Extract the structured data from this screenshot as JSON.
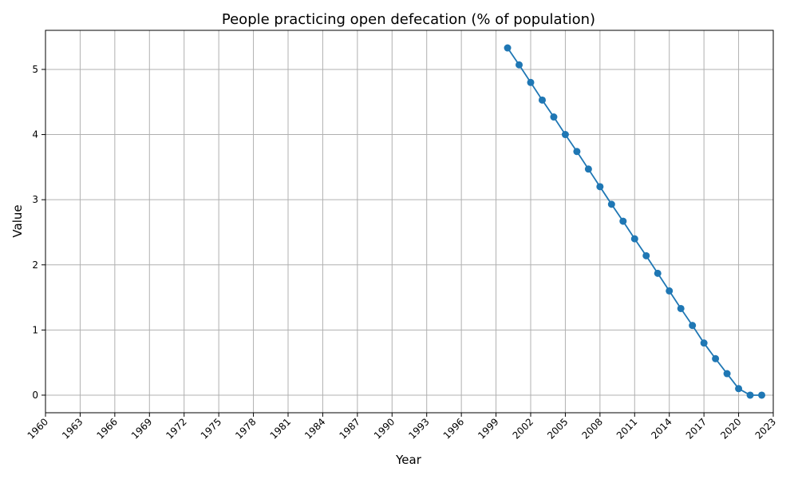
{
  "chart_data": {
    "type": "line",
    "title": "People practicing open defecation (% of population)",
    "xlabel": "Year",
    "ylabel": "Value",
    "xlim": [
      1960,
      2023
    ],
    "ylim": [
      -0.27,
      5.6
    ],
    "xticks": [
      1960,
      1963,
      1966,
      1969,
      1972,
      1975,
      1978,
      1981,
      1984,
      1987,
      1990,
      1993,
      1996,
      1999,
      2002,
      2005,
      2008,
      2011,
      2014,
      2017,
      2020,
      2023
    ],
    "yticks": [
      0,
      1,
      2,
      3,
      4,
      5
    ],
    "grid": true,
    "marker": "circle",
    "color": "#1f77b4",
    "series": [
      {
        "x": [
          2000,
          2001,
          2002,
          2003,
          2004,
          2005,
          2006,
          2007,
          2008,
          2009,
          2010,
          2011,
          2012,
          2013,
          2014,
          2015,
          2016,
          2017,
          2018,
          2019,
          2020,
          2021,
          2022
        ],
        "values": [
          5.33,
          5.07,
          4.8,
          4.53,
          4.27,
          4.0,
          3.74,
          3.47,
          3.2,
          2.93,
          2.67,
          2.4,
          2.14,
          1.87,
          1.6,
          1.33,
          1.07,
          0.8,
          0.56,
          0.33,
          0.1,
          0.0,
          0.0
        ]
      }
    ]
  }
}
